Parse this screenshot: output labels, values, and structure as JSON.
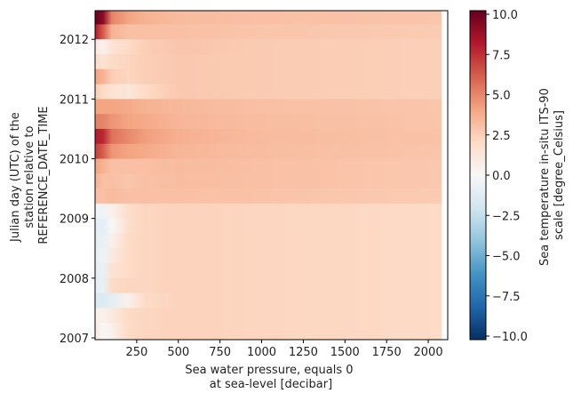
{
  "chart_data": {
    "type": "heatmap",
    "title": "",
    "xlabel": [
      "Sea water pressure, equals 0",
      "at sea-level [decibar]"
    ],
    "ylabel": [
      "Julian day (UTC) of the",
      "station relative to",
      "REFERENCE_DATE_TIME"
    ],
    "colorbar_label": [
      "Sea temperature in-situ ITS-90",
      "scale [degree_Celsius]"
    ],
    "colormap": "RdBu_r",
    "xlim": [
      0,
      2117
    ],
    "ylim": [
      2006.97,
      2012.48
    ],
    "xticks": [
      250,
      500,
      750,
      1000,
      1250,
      1500,
      1750,
      2000
    ],
    "yticks": [
      2007,
      2008,
      2009,
      2010,
      2011,
      2012
    ],
    "colorbar_range": [
      -10,
      10
    ],
    "colorbar_ticks": [
      "10.0",
      "7.5",
      "5.0",
      "2.5",
      "0.0",
      "−2.5",
      "−5.0",
      "−7.5",
      "−10.0"
    ],
    "colorbar_tick_values": [
      10,
      7.5,
      5,
      2.5,
      0,
      -2.5,
      -5,
      -7.5,
      -10
    ],
    "pressure_levels": [
      0,
      50,
      100,
      200,
      300,
      500,
      1000,
      2080
    ],
    "rows": [
      {
        "time": 2012.25,
        "values": [
          10,
          9,
          5,
          4,
          3.5,
          3.2,
          3,
          2.8
        ]
      },
      {
        "time": 2012.0,
        "values": [
          8,
          6,
          3.5,
          3,
          3,
          3,
          2.8,
          2.6
        ]
      },
      {
        "time": 2011.75,
        "values": [
          1,
          0.5,
          1.5,
          2,
          2.5,
          2.8,
          2.6,
          2.4
        ]
      },
      {
        "time": 2011.5,
        "values": [
          2,
          1.5,
          2,
          2.2,
          2.5,
          2.7,
          2.6,
          2.4
        ]
      },
      {
        "time": 2011.25,
        "values": [
          4,
          3.5,
          2.5,
          2.2,
          2.5,
          2.7,
          2.6,
          2.4
        ]
      },
      {
        "time": 2011.0,
        "values": [
          2.5,
          2,
          1.5,
          1.2,
          2,
          2.7,
          2.6,
          2.4
        ]
      },
      {
        "time": 2010.75,
        "values": [
          4,
          4,
          4,
          3.8,
          3.5,
          3.3,
          3,
          2.8
        ]
      },
      {
        "time": 2010.5,
        "values": [
          5,
          5,
          4.5,
          4,
          3.8,
          3.4,
          3.1,
          2.8
        ]
      },
      {
        "time": 2010.25,
        "values": [
          8,
          7.5,
          5.5,
          4.8,
          4.2,
          3.6,
          3.2,
          2.9
        ]
      },
      {
        "time": 2010.0,
        "values": [
          7,
          6,
          4.5,
          4,
          3.8,
          3.4,
          3.1,
          2.8
        ]
      },
      {
        "time": 2009.75,
        "values": [
          4,
          3.5,
          3,
          3,
          3,
          3.2,
          3,
          2.7
        ]
      },
      {
        "time": 2009.5,
        "values": [
          3.5,
          3,
          3,
          2.8,
          3,
          3.1,
          3,
          2.7
        ]
      },
      {
        "time": 2009.25,
        "values": [
          3,
          3,
          3.2,
          3,
          3,
          3,
          2.9,
          2.6
        ]
      },
      {
        "time": 2009.0,
        "values": [
          -0.5,
          -0.5,
          0.5,
          1.8,
          2.2,
          2.3,
          2.2,
          2.0
        ]
      },
      {
        "time": 2008.75,
        "values": [
          -1,
          -1,
          0,
          1.8,
          2.2,
          2.3,
          2.2,
          2.0
        ]
      },
      {
        "time": 2008.5,
        "values": [
          -1,
          -0.8,
          0.5,
          2,
          2.2,
          2.3,
          2.2,
          2.0
        ]
      },
      {
        "time": 2008.25,
        "values": [
          -0.8,
          -0.5,
          1,
          2,
          2.2,
          2.3,
          2.2,
          2.0
        ]
      },
      {
        "time": 2008.0,
        "values": [
          -1,
          -0.8,
          1.5,
          2,
          2.2,
          2.3,
          2.2,
          2.0
        ]
      },
      {
        "time": 2007.75,
        "values": [
          -1,
          -0.8,
          2,
          2.2,
          2.2,
          2.3,
          2.2,
          2.0
        ]
      },
      {
        "time": 2007.5,
        "values": [
          -1.5,
          -1.5,
          -1,
          0.5,
          2,
          2.3,
          2.2,
          2.0
        ]
      },
      {
        "time": 2007.25,
        "values": [
          0.5,
          0.5,
          1,
          2,
          2.2,
          2.3,
          2.2,
          2.0
        ]
      },
      {
        "time": 2006.97,
        "values": [
          1,
          0,
          0.5,
          2,
          2.2,
          2.3,
          2.2,
          2.0
        ]
      }
    ]
  }
}
